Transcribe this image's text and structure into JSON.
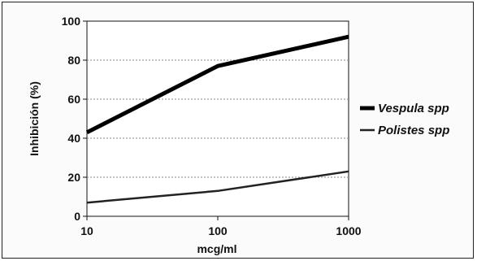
{
  "chart_data": {
    "type": "line",
    "title": "",
    "xlabel": "mcg/ml",
    "ylabel": "Inhibición (%)",
    "x_scale": "log",
    "x": [
      10,
      100,
      1000
    ],
    "x_ticks": [
      "10",
      "100",
      "1000"
    ],
    "y_ticks": [
      "0",
      "20",
      "40",
      "60",
      "80",
      "100"
    ],
    "ylim": [
      0,
      100
    ],
    "xlim": [
      10,
      1000
    ],
    "grid": "horizontal dashed",
    "legend_position": "right",
    "series": [
      {
        "name": "Vespula spp",
        "values": [
          43,
          77,
          92
        ],
        "color": "#000000",
        "weight": "thick"
      },
      {
        "name": "Polistes spp",
        "values": [
          7,
          13,
          23
        ],
        "color": "#222222",
        "weight": "thin"
      }
    ]
  }
}
